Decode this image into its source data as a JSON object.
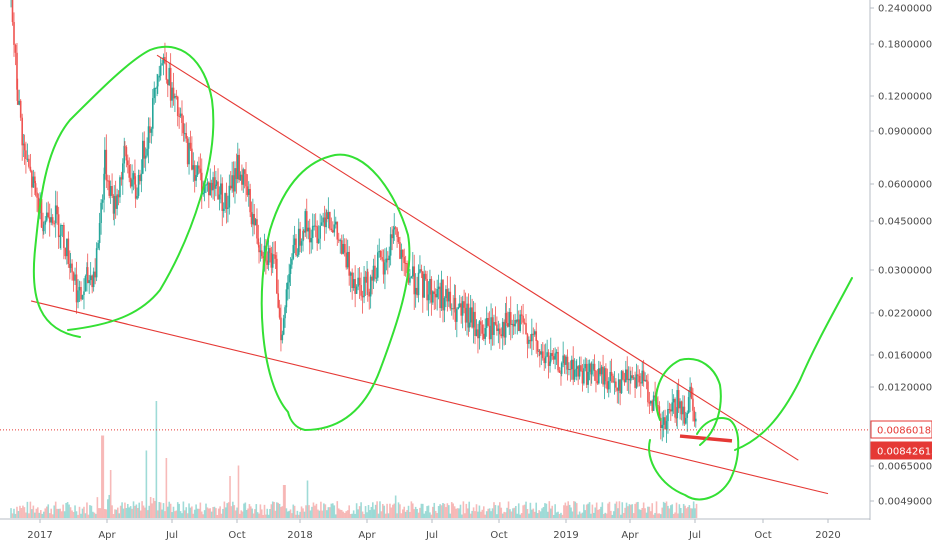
{
  "chart_data": {
    "type": "line",
    "scale": "log",
    "grid": false,
    "y_ticks": [
      "0.24000000",
      "0.18000000",
      "0.12000000",
      "0.09000000",
      "0.06000000",
      "0.04500000",
      "0.03000000",
      "0.02200000",
      "0.01600000",
      "0.01200000",
      "0.00650000",
      "0.00490000"
    ],
    "y_tick_values": [
      0.24,
      0.18,
      0.12,
      0.09,
      0.06,
      0.045,
      0.03,
      0.022,
      0.016,
      0.012,
      0.0065,
      0.0049
    ],
    "x_ticks": [
      "2017",
      "Apr",
      "Jul",
      "Oct",
      "2018",
      "Apr",
      "Jul",
      "Oct",
      "2019",
      "Apr",
      "Jul",
      "Oct",
      "2020"
    ],
    "x_tick_dates": [
      "2017-01-01",
      "2017-04-01",
      "2017-07-01",
      "2017-10-01",
      "2018-01-01",
      "2018-04-01",
      "2018-07-01",
      "2018-10-01",
      "2019-01-01",
      "2019-04-01",
      "2019-07-01",
      "2019-10-01",
      "2020-01-01"
    ],
    "ylim": [
      0.0043,
      0.26
    ],
    "xlim": [
      "2016-11-20",
      "2020-03-01"
    ],
    "series": [
      {
        "type": "candlestick-approx",
        "color_up": "#26a69a",
        "color_down": "#ef5350",
        "points": [
          [
            "2016-11-22",
            0.25
          ],
          [
            "2016-12-01",
            0.12
          ],
          [
            "2016-12-10",
            0.075
          ],
          [
            "2016-12-25",
            0.055
          ],
          [
            "2017-01-05",
            0.045
          ],
          [
            "2017-01-15",
            0.05
          ],
          [
            "2017-01-28",
            0.042
          ],
          [
            "2017-02-10",
            0.032
          ],
          [
            "2017-02-22",
            0.024
          ],
          [
            "2017-03-05",
            0.028
          ],
          [
            "2017-03-15",
            0.03
          ],
          [
            "2017-03-28",
            0.07
          ],
          [
            "2017-04-10",
            0.05
          ],
          [
            "2017-04-25",
            0.075
          ],
          [
            "2017-05-10",
            0.055
          ],
          [
            "2017-05-20",
            0.075
          ],
          [
            "2017-06-01",
            0.1
          ],
          [
            "2017-06-10",
            0.15
          ],
          [
            "2017-06-20",
            0.16
          ],
          [
            "2017-06-30",
            0.12
          ],
          [
            "2017-07-10",
            0.1
          ],
          [
            "2017-07-20",
            0.08
          ],
          [
            "2017-08-01",
            0.068
          ],
          [
            "2017-08-15",
            0.058
          ],
          [
            "2017-09-01",
            0.06
          ],
          [
            "2017-09-15",
            0.05
          ],
          [
            "2017-10-01",
            0.07
          ],
          [
            "2017-10-15",
            0.055
          ],
          [
            "2017-11-01",
            0.038
          ],
          [
            "2017-11-15",
            0.034
          ],
          [
            "2017-11-25",
            0.03
          ],
          [
            "2017-12-05",
            0.018
          ],
          [
            "2017-12-15",
            0.032
          ],
          [
            "2017-12-25",
            0.036
          ],
          [
            "2018-01-05",
            0.045
          ],
          [
            "2018-01-15",
            0.04
          ],
          [
            "2018-01-25",
            0.042
          ],
          [
            "2018-02-05",
            0.05
          ],
          [
            "2018-02-15",
            0.042
          ],
          [
            "2018-03-01",
            0.033
          ],
          [
            "2018-03-15",
            0.028
          ],
          [
            "2018-04-01",
            0.027
          ],
          [
            "2018-04-15",
            0.032
          ],
          [
            "2018-04-25",
            0.03
          ],
          [
            "2018-05-08",
            0.044
          ],
          [
            "2018-05-20",
            0.03
          ],
          [
            "2018-06-05",
            0.028
          ],
          [
            "2018-06-25",
            0.026
          ],
          [
            "2018-07-15",
            0.025
          ],
          [
            "2018-08-01",
            0.022
          ],
          [
            "2018-08-20",
            0.021
          ],
          [
            "2018-09-05",
            0.019
          ],
          [
            "2018-09-25",
            0.02
          ],
          [
            "2018-10-10",
            0.02
          ],
          [
            "2018-10-25",
            0.02
          ],
          [
            "2018-11-10",
            0.019
          ],
          [
            "2018-11-25",
            0.016
          ],
          [
            "2018-12-10",
            0.015
          ],
          [
            "2018-12-25",
            0.0145
          ],
          [
            "2019-01-15",
            0.0138
          ],
          [
            "2019-02-05",
            0.0135
          ],
          [
            "2019-02-25",
            0.013
          ],
          [
            "2019-03-15",
            0.0125
          ],
          [
            "2019-04-01",
            0.0135
          ],
          [
            "2019-04-15",
            0.013
          ],
          [
            "2019-05-01",
            0.011
          ],
          [
            "2019-05-15",
            0.0085
          ],
          [
            "2019-05-25",
            0.0095
          ],
          [
            "2019-06-05",
            0.0105
          ],
          [
            "2019-06-15",
            0.0098
          ],
          [
            "2019-06-25",
            0.012
          ],
          [
            "2019-07-02",
            0.0084
          ]
        ]
      }
    ],
    "volume": {
      "color_up": "#7fcfc9",
      "color_down": "#f4a3a1",
      "spikes": [
        [
          "2017-03-25",
          0.55
        ],
        [
          "2017-04-05",
          0.32
        ],
        [
          "2017-05-25",
          0.45
        ],
        [
          "2017-06-08",
          0.78
        ],
        [
          "2017-06-22",
          0.4
        ],
        [
          "2017-09-20",
          0.28
        ],
        [
          "2017-10-02",
          0.35
        ],
        [
          "2017-12-08",
          0.22
        ],
        [
          "2018-01-10",
          0.25
        ],
        [
          "2018-05-10",
          0.15
        ],
        [
          "2019-05-20",
          0.1
        ]
      ]
    },
    "annotations": {
      "upper_trendline": [
        [
          "2017-06-10",
          0.165
        ],
        [
          "2019-11-20",
          0.0068
        ]
      ],
      "lower_trendline": [
        [
          "2016-12-20",
          0.024
        ],
        [
          "2020-01-01",
          0.0052
        ]
      ],
      "red_support_segment": [
        [
          "2019-06-10",
          0.0082
        ],
        [
          "2019-08-20",
          0.0079
        ]
      ],
      "projection_curve_color": "#34e034",
      "horizontal_price_line": 0.0086
    },
    "price_labels": [
      {
        "text": "0.00860182",
        "value": 0.00860182,
        "style": "outline",
        "color": "#e53935"
      },
      {
        "text": "0.00842613",
        "value": 0.00842613,
        "style": "filled",
        "color": "#e53935"
      }
    ]
  }
}
